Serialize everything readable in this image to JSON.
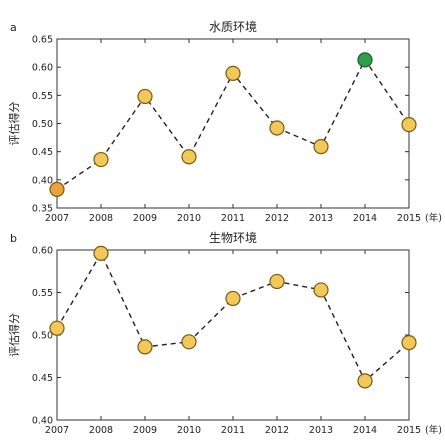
{
  "chart_data": [
    {
      "type": "line",
      "panel_label": "a",
      "title": "水质环境",
      "ylabel": "评估得分",
      "x": [
        "2007",
        "2008",
        "2009",
        "2010",
        "2011",
        "2012",
        "2013",
        "2014",
        "2015"
      ],
      "x_unit_suffix": "(年)",
      "y": [
        0.383,
        0.436,
        0.548,
        0.441,
        0.589,
        0.492,
        0.459,
        0.613,
        0.498
      ],
      "ylim": [
        0.35,
        0.65
      ],
      "yticks": [
        "0.35",
        "0.40",
        "0.45",
        "0.50",
        "0.55",
        "0.60",
        "0.65"
      ],
      "grid": false,
      "marker_colors": [
        "#E8A33D",
        "#F3C85B",
        "#F3C85B",
        "#F3C85B",
        "#F3C85B",
        "#F3C85B",
        "#F3C85B",
        "#2E9E4A",
        "#F3C85B"
      ]
    },
    {
      "type": "line",
      "panel_label": "b",
      "title": "生物环境",
      "ylabel": "评估得分",
      "x": [
        "2007",
        "2008",
        "2009",
        "2010",
        "2011",
        "2012",
        "2013",
        "2014",
        "2015"
      ],
      "x_unit_suffix": "(年)",
      "y": [
        0.508,
        0.596,
        0.486,
        0.492,
        0.543,
        0.563,
        0.553,
        0.446,
        0.491
      ],
      "ylim": [
        0.4,
        0.6
      ],
      "yticks": [
        "0.40",
        "0.45",
        "0.50",
        "0.55",
        "0.60"
      ],
      "grid": false,
      "marker_colors": [
        "#F3C85B",
        "#F3C85B",
        "#F3C85B",
        "#F3C85B",
        "#F3C85B",
        "#F3C85B",
        "#F3C85B",
        "#F3C85B",
        "#F3C85B"
      ]
    }
  ],
  "colors": {
    "marker_stroke": "#7a5a10",
    "marker_stroke_green": "#1b5e2c",
    "line": "#222222"
  }
}
